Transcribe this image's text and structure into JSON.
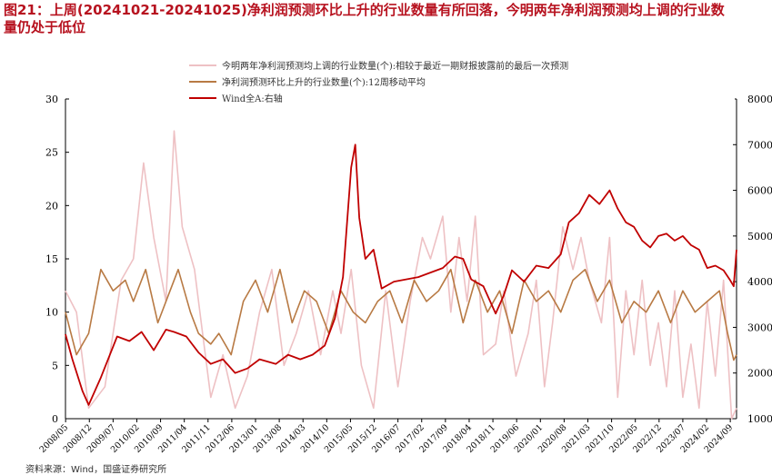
{
  "title": {
    "line1": "图21：上周(20241021-20241025)净利润预测环比上升的行业数量有所回落，今明两年净利润预测均上调的行业数",
    "line2": "量仍处于低位"
  },
  "source": "资料来源：Wind，国盛证券研究所",
  "colors": {
    "title": "#b7121f",
    "series_pink": "#eec1c4",
    "series_brown": "#b87a44",
    "series_red": "#c00000"
  },
  "chart_data": {
    "type": "line",
    "legend_position": "top",
    "grid": false,
    "y_left": {
      "range": [
        0,
        30
      ],
      "ticks": [
        "0",
        "5",
        "10",
        "15",
        "20",
        "25",
        "30"
      ]
    },
    "y_right": {
      "range": [
        1000,
        8000
      ],
      "ticks": [
        "1000",
        "2000",
        "3000",
        "4000",
        "5000",
        "6000",
        "7000",
        "8000"
      ]
    },
    "x_ticks": [
      "2008/05",
      "2008/12",
      "2009/07",
      "2010/02",
      "2010/09",
      "2011/04",
      "2011/11",
      "2012/06",
      "2013/01",
      "2013/08",
      "2014/03",
      "2014/10",
      "2015/05",
      "2015/12",
      "2016/07",
      "2017/02",
      "2017/09",
      "2018/04",
      "2018/11",
      "2019/06",
      "2020/01",
      "2020/08",
      "2021/03",
      "2021/10",
      "2022/05",
      "2022/12",
      "2023/07",
      "2024/02",
      "2024/09"
    ],
    "series": [
      {
        "name": "今明两年净利润预测均上调的行业数量(个):相较于最近一期财报披露前的最后一次预测",
        "axis": "left",
        "x": [
          2008.33,
          2008.6,
          2008.9,
          2009.3,
          2009.7,
          2010.0,
          2010.25,
          2010.5,
          2010.8,
          2011.0,
          2011.2,
          2011.5,
          2011.7,
          2011.9,
          2012.2,
          2012.5,
          2012.8,
          2013.1,
          2013.4,
          2013.7,
          2014.0,
          2014.3,
          2014.6,
          2014.9,
          2015.1,
          2015.35,
          2015.6,
          2015.9,
          2016.2,
          2016.5,
          2016.8,
          2017.1,
          2017.3,
          2017.6,
          2017.8,
          2018.0,
          2018.2,
          2018.4,
          2018.6,
          2018.9,
          2019.1,
          2019.4,
          2019.7,
          2019.9,
          2020.1,
          2020.3,
          2020.55,
          2020.8,
          2021.0,
          2021.2,
          2021.5,
          2021.7,
          2021.9,
          2022.1,
          2022.3,
          2022.5,
          2022.7,
          2022.9,
          2023.1,
          2023.3,
          2023.5,
          2023.7,
          2023.9,
          2024.1,
          2024.3,
          2024.5,
          2024.7,
          2024.82
        ],
        "values": [
          12,
          10,
          1,
          3,
          13,
          15,
          24,
          17,
          11,
          27,
          18,
          14,
          8,
          2,
          6,
          1,
          4,
          10,
          14,
          5,
          8,
          12,
          6,
          12,
          8,
          14,
          5,
          1,
          12,
          3,
          11,
          17,
          15,
          19,
          10,
          17,
          11,
          19,
          6,
          7,
          12,
          4,
          8,
          13,
          3,
          9,
          18,
          14,
          17,
          13,
          9,
          17,
          2,
          12,
          6,
          13,
          5,
          9,
          3,
          12,
          2,
          7,
          1,
          11,
          4,
          13,
          0,
          1
        ]
      },
      {
        "name": "净利润预测环比上升的行业数量(个):12周移动平均",
        "axis": "left",
        "x": [
          2008.33,
          2008.6,
          2008.9,
          2009.2,
          2009.5,
          2009.8,
          2010.0,
          2010.3,
          2010.6,
          2010.9,
          2011.1,
          2011.4,
          2011.6,
          2011.9,
          2012.1,
          2012.4,
          2012.7,
          2013.0,
          2013.3,
          2013.6,
          2013.9,
          2014.2,
          2014.5,
          2014.8,
          2015.1,
          2015.4,
          2015.7,
          2016.0,
          2016.3,
          2016.6,
          2016.9,
          2017.2,
          2017.5,
          2017.8,
          2018.1,
          2018.4,
          2018.7,
          2019.0,
          2019.3,
          2019.6,
          2019.9,
          2020.2,
          2020.5,
          2020.8,
          2021.1,
          2021.4,
          2021.7,
          2022.0,
          2022.3,
          2022.6,
          2022.9,
          2023.2,
          2023.5,
          2023.8,
          2024.1,
          2024.4,
          2024.6,
          2024.75,
          2024.82
        ],
        "values": [
          10,
          6,
          8,
          14,
          12,
          13,
          11,
          14,
          9,
          12,
          14,
          10,
          8,
          7,
          8,
          6,
          11,
          13,
          10,
          14,
          9,
          12,
          11,
          8,
          12,
          10,
          9,
          11,
          12,
          9,
          13,
          11,
          12,
          14,
          9,
          13,
          10,
          12,
          8,
          13,
          11,
          12,
          10,
          13,
          14,
          11,
          13,
          9,
          11,
          10,
          12,
          9,
          12,
          10,
          11,
          12,
          8,
          5.5,
          6
        ]
      },
      {
        "name": "Wind全A:右轴",
        "axis": "right",
        "x": [
          2008.33,
          2008.5,
          2008.75,
          2008.9,
          2009.2,
          2009.6,
          2009.9,
          2010.2,
          2010.5,
          2010.8,
          2011.0,
          2011.3,
          2011.6,
          2011.9,
          2012.2,
          2012.5,
          2012.8,
          2013.1,
          2013.5,
          2013.8,
          2014.1,
          2014.4,
          2014.7,
          2014.95,
          2015.15,
          2015.35,
          2015.45,
          2015.55,
          2015.7,
          2015.9,
          2016.1,
          2016.4,
          2016.7,
          2017.0,
          2017.3,
          2017.6,
          2017.9,
          2018.1,
          2018.3,
          2018.6,
          2018.9,
          2019.1,
          2019.3,
          2019.6,
          2019.9,
          2020.2,
          2020.5,
          2020.7,
          2020.95,
          2021.2,
          2021.45,
          2021.7,
          2021.9,
          2022.1,
          2022.3,
          2022.5,
          2022.7,
          2022.9,
          2023.1,
          2023.3,
          2023.5,
          2023.7,
          2023.9,
          2024.1,
          2024.3,
          2024.5,
          2024.65,
          2024.75,
          2024.82
        ],
        "values": [
          2850,
          2300,
          1600,
          1300,
          1900,
          2800,
          2700,
          2900,
          2500,
          2950,
          2900,
          2800,
          2450,
          2200,
          2300,
          2000,
          2100,
          2300,
          2200,
          2400,
          2300,
          2400,
          2600,
          3200,
          4100,
          6500,
          7000,
          5400,
          4500,
          4700,
          3850,
          4000,
          4050,
          4100,
          4200,
          4300,
          4550,
          4500,
          4050,
          3900,
          3300,
          3700,
          4250,
          4000,
          4350,
          4300,
          4600,
          5300,
          5500,
          5900,
          5700,
          6000,
          5600,
          5300,
          5200,
          4900,
          4750,
          5000,
          5050,
          4900,
          5000,
          4800,
          4700,
          4300,
          4350,
          4250,
          4050,
          3900,
          4700
        ]
      }
    ]
  }
}
